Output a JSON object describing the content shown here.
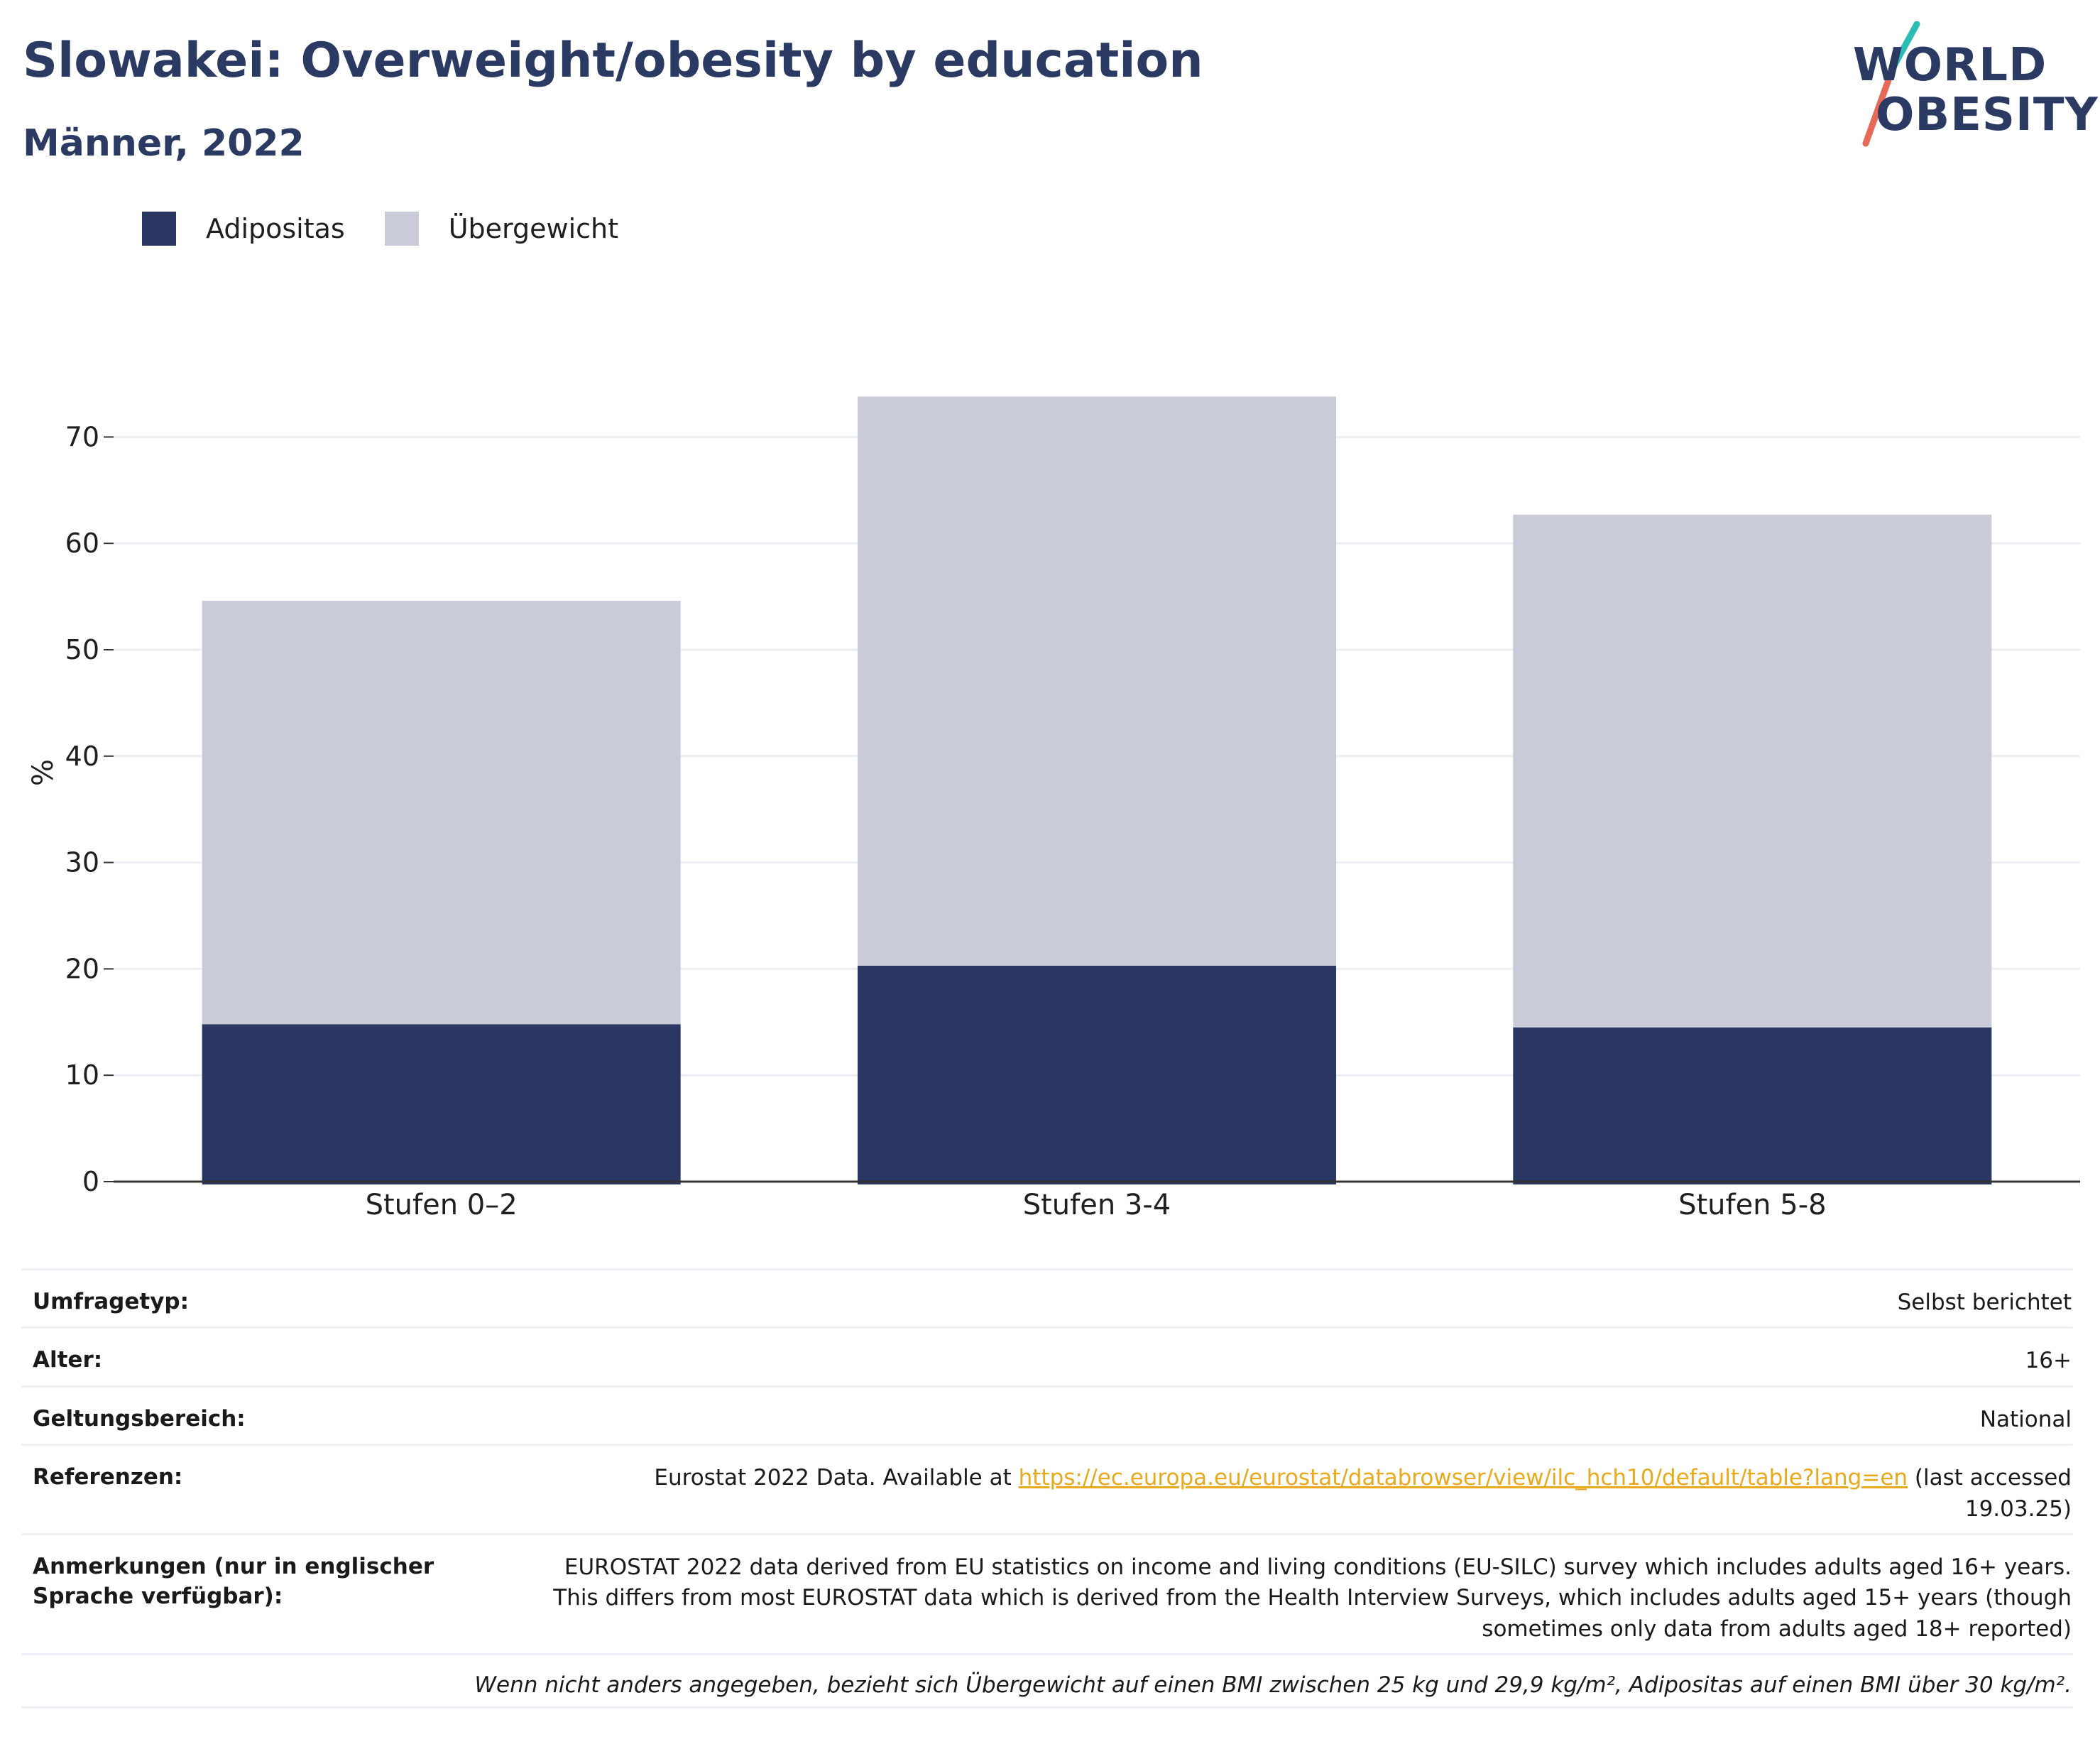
{
  "header": {
    "title": "Slowakei: Overweight/obesity by education",
    "subtitle": "Männer, 2022"
  },
  "logo": {
    "line1": "WORLD",
    "line2": "OBESITY",
    "colors": {
      "text": "#2a3a63",
      "slash_top": "#2bbcb3",
      "slash_bottom": "#e8685a"
    }
  },
  "colors": {
    "obesity": "#2a3763",
    "overweight": "#c9ccd8",
    "grid": "#eceef3",
    "axis": "#333333",
    "link": "#e8a91c",
    "title": "#2a3a63"
  },
  "legend": {
    "items": [
      {
        "label": "Adipositas",
        "color": "#2a3763"
      },
      {
        "label": "Übergewicht",
        "color": "#c9ccd8"
      }
    ]
  },
  "chart_data": {
    "type": "bar",
    "stacked": true,
    "title": "Slowakei: Overweight/obesity by education",
    "subtitle": "Männer, 2022",
    "categories": [
      "Stufen 0–2",
      "Stufen 3-4",
      "Stufen 5-8"
    ],
    "series": [
      {
        "name": "Adipositas",
        "values": [
          14.8,
          20.3,
          14.5
        ]
      },
      {
        "name": "Übergewicht",
        "values": [
          39.8,
          53.5,
          48.2
        ]
      }
    ],
    "xlabel": "",
    "ylabel": "%",
    "ylim": [
      0,
      80
    ],
    "yticks": [
      0,
      10,
      20,
      30,
      40,
      50,
      60,
      70
    ],
    "grid": true,
    "legend_position": "top-left"
  },
  "info": {
    "rows": [
      {
        "key": "Umfragetyp:",
        "value": "Selbst berichtet"
      },
      {
        "key": "Alter:",
        "value": "16+"
      },
      {
        "key": "Geltungsbereich:",
        "value": "National"
      },
      {
        "key": "Referenzen:",
        "value_prefix": "Eurostat 2022 Data. Available at ",
        "link": "https://ec.europa.eu/eurostat/databrowser/view/ilc_hch10/default/table?lang=en",
        "value_suffix": " (last accessed 19.03.25)"
      },
      {
        "key": "Anmerkungen (nur in englischer Sprache verfügbar):",
        "value": "EUROSTAT 2022 data derived from EU statistics on income and living conditions (EU-SILC) survey which includes adults aged 16+ years. This differs from most EUROSTAT data which is derived from the Health Interview Surveys, which includes adults aged 15+ years (though sometimes only data from adults aged 18+ reported)"
      }
    ],
    "footnote": "Wenn nicht anders angegeben, bezieht sich Übergewicht auf einen BMI zwischen 25 kg und 29,9 kg/m², Adipositas auf einen BMI über 30 kg/m²."
  }
}
